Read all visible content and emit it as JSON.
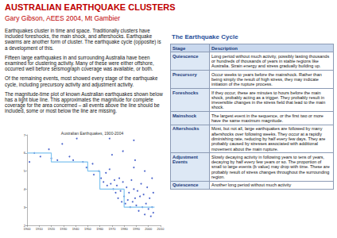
{
  "header": {
    "title": "AUSTRALIAN EARTHQUAKE CLUSTERS",
    "author": "Gary Gibson, AEES 2004, Mt Gambier"
  },
  "paragraphs": [
    "Earthquakes cluster in time and space. Traditionally clusters have included foreshocks, the main shock, and aftershocks. Earthquake swarms are another form of cluster. The earthquake cycle (opposite) is a development of this.",
    "Fifteen large earthquakes in and surrounding Australia have been examined for clustering activity. Many of these were either offshore, occurred well before seismograph coverage was available, or both.",
    "Of the remaining events, most showed every stage of the earthquake cycle, including precursory activity and adjustment activity.",
    "The magnitude-time plot of known Australian earthquakes shown below has a light blue line. This approximates the magnitude for complete coverage for the area concerned – all events above the line should be included, some or most below the line are missing."
  ],
  "table": {
    "title": "The Earthquake Cycle",
    "columns": [
      "Stage",
      "Description"
    ],
    "rows": [
      [
        "Quiescence",
        "Long period without much activity, possibly lasting thousands or hundreds of thousands of years in stable regions like Australia. Strain energy and stress gradually building up."
      ],
      [
        "Precursory",
        "Occur weeks to years before the mainshock. Rather than being simply the result of high stress, they may indicate initiation of the rupture process."
      ],
      [
        "Foreshocks",
        "If they occur, these are minutes to hours before the main shock, probably acting as a trigger. They probably result in irreversible changes in the stress field that lead to the main shock."
      ],
      [
        "Mainshock",
        "The largest event in the sequence, or the first two or more have the same maximum magnitude."
      ],
      [
        "Aftershocks",
        "Most, but not all, large earthquakes are followed by many aftershocks over following weeks. They occur at a rapidly diminishing rate, reducing by half every few days. They are probably caused by stresses associated with additional movement about the main rupture."
      ],
      [
        "Adjustment Events",
        "Slowly decaying activity in following years to tens of years, decaying by half every few years or so. The proportion of small to large events (b value) may drop with time. These are probably result of stress changes throughout the surrounding region."
      ],
      [
        "Quiescence",
        "Another long period without much activity"
      ]
    ]
  },
  "chart_data": {
    "type": "scatter",
    "title": "Australian Earthquakes, 1900-2004",
    "xlim": [
      1900,
      2010
    ],
    "xticks": [
      1900,
      1910,
      1920,
      1930,
      1940,
      1950,
      1960,
      1970,
      1980,
      1990,
      2000,
      2010
    ],
    "ylim": [
      2,
      7
    ],
    "yticks": [
      2,
      3,
      4,
      5,
      6,
      7
    ],
    "grid": false,
    "series": [
      {
        "type": "scatter",
        "color": "#1f3fbf",
        "marker": "circle",
        "x": [
          1902,
          1906,
          1911,
          1918,
          1920,
          1925,
          1929,
          1935,
          1938,
          1941,
          1946,
          1949,
          1954,
          1955,
          1959,
          1961,
          1963,
          1965,
          1966,
          1968,
          1968,
          1969,
          1970,
          1971,
          1972,
          1973,
          1974,
          1975,
          1976,
          1977,
          1978,
          1979,
          1979,
          1980,
          1981,
          1982,
          1983,
          1984,
          1985,
          1986,
          1987,
          1988,
          1988,
          1988,
          1989,
          1989,
          1990,
          1991,
          1992,
          1993,
          1994,
          1995,
          1996,
          1997,
          1997,
          1998,
          1999,
          2000,
          2001,
          2002,
          2003,
          2003,
          2004,
          2004
        ],
        "values": [
          5.5,
          6.0,
          5.8,
          6.2,
          5.7,
          5.6,
          6.5,
          5.8,
          5.6,
          6.8,
          5.5,
          5.2,
          5.4,
          4.8,
          5.0,
          4.6,
          4.4,
          4.9,
          4.2,
          6.8,
          5.1,
          4.3,
          5.9,
          4.0,
          4.5,
          3.8,
          4.2,
          3.5,
          4.6,
          3.9,
          3.3,
          6.1,
          4.4,
          3.6,
          3.2,
          4.1,
          3.4,
          3.8,
          3.0,
          4.5,
          3.3,
          6.7,
          5.2,
          4.0,
          5.6,
          3.5,
          3.1,
          3.9,
          2.8,
          3.6,
          4.3,
          3.0,
          3.7,
          2.6,
          5.0,
          3.2,
          4.1,
          2.9,
          3.5,
          2.5,
          4.6,
          3.0,
          2.7,
          3.8
        ]
      },
      {
        "type": "line",
        "color": "#7fc4f0",
        "line_style": "solid",
        "x": [
          1900,
          1920,
          1920,
          1950,
          1950,
          1960,
          1960,
          1980,
          1980,
          2005
        ],
        "values": [
          6.0,
          6.0,
          5.5,
          5.5,
          5.0,
          5.0,
          4.0,
          4.0,
          3.0,
          3.0
        ]
      }
    ]
  }
}
